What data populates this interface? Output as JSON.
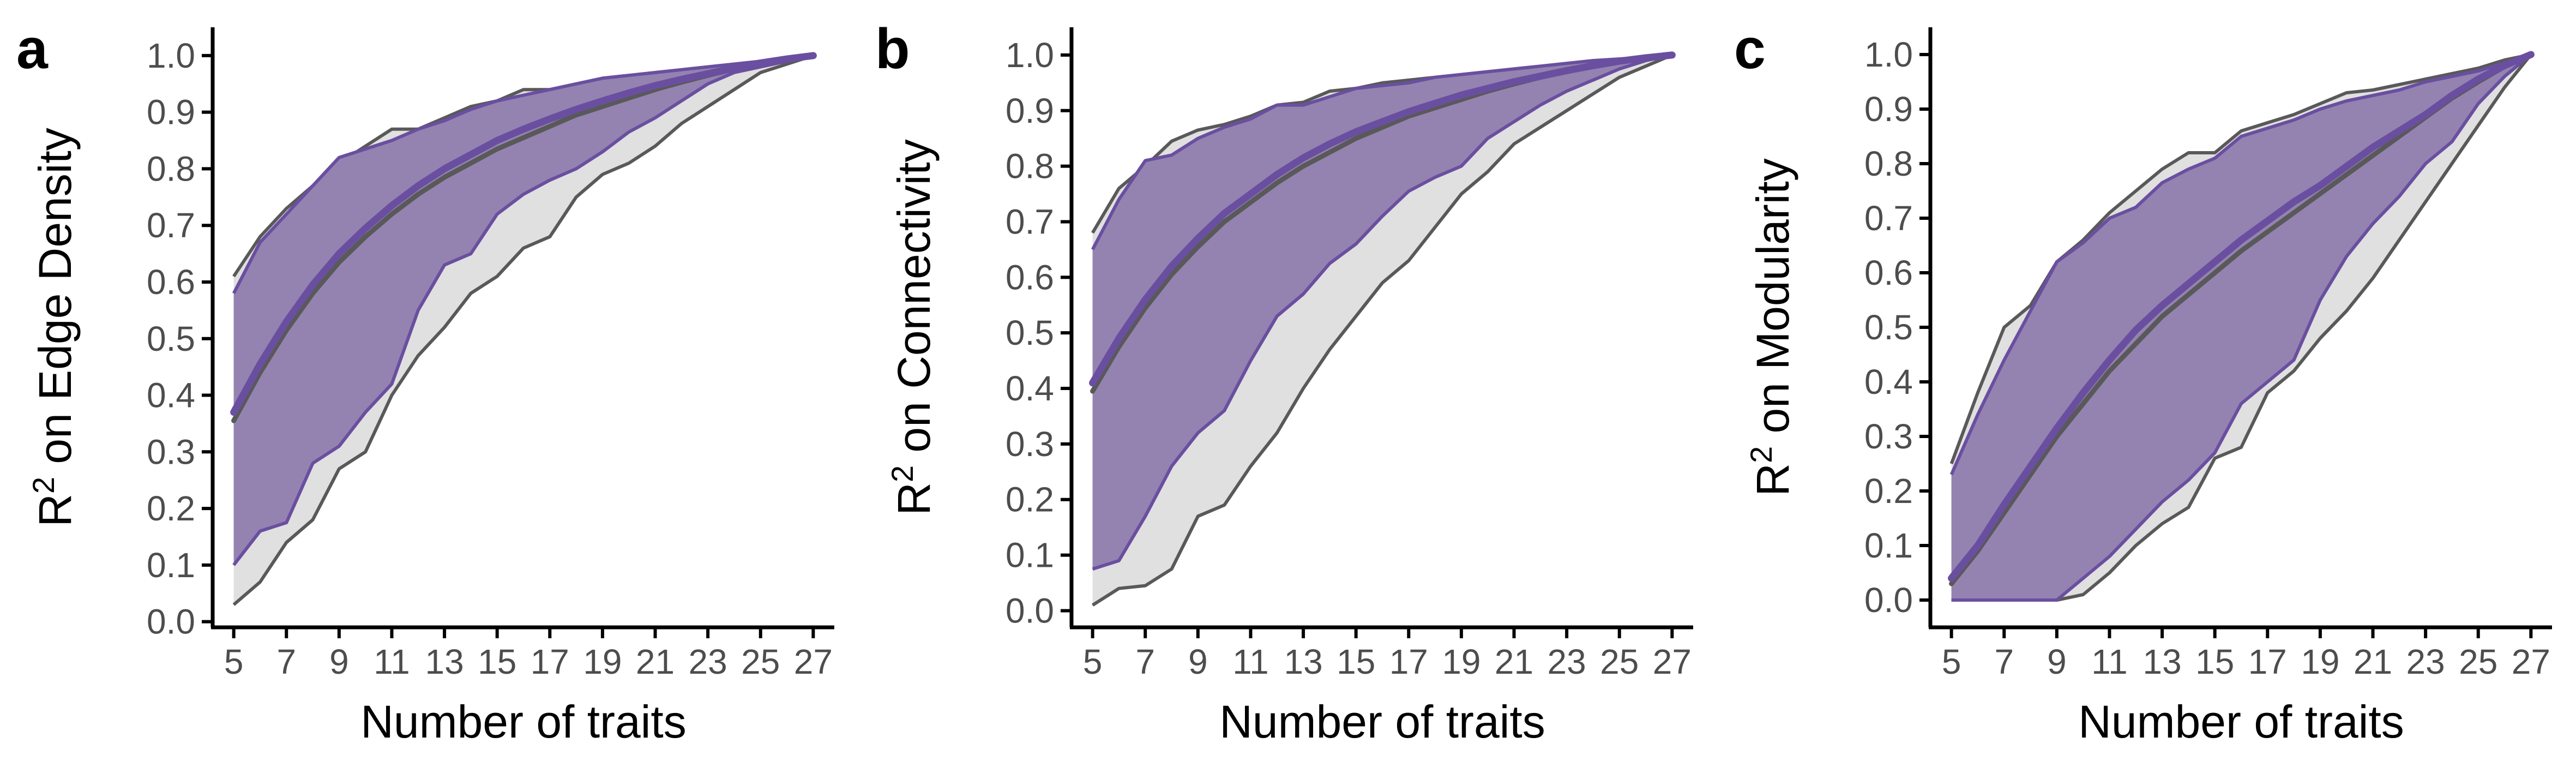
{
  "colors": {
    "gray_band_fill": "#e0e0e0",
    "gray_line": "#595959",
    "purple_fill": "#9483b0",
    "purple_line": "#6a4fa0",
    "axis": "#000000",
    "tick_text": "#4d4d4d"
  },
  "chart_data": [
    {
      "type": "area",
      "panel_label": "a",
      "xlabel": "Number of traits",
      "ylabel": "R² on Edge Density",
      "ylabel_base": "R",
      "ylabel_sup": "2",
      "ylabel_rest": " on Edge Density",
      "xlim": [
        4.2,
        27.8
      ],
      "ylim": [
        -0.01,
        1.05
      ],
      "xticks": [
        5,
        7,
        9,
        11,
        13,
        15,
        17,
        19,
        21,
        23,
        25,
        27
      ],
      "yticks": [
        0.0,
        0.1,
        0.2,
        0.3,
        0.4,
        0.5,
        0.6,
        0.7,
        0.8,
        0.9,
        1.0
      ],
      "x": [
        5,
        6,
        7,
        8,
        9,
        10,
        11,
        12,
        13,
        14,
        15,
        16,
        17,
        18,
        19,
        20,
        21,
        22,
        23,
        24,
        25,
        26,
        27
      ],
      "series": [
        {
          "role": "gray_band",
          "upper": [
            0.61,
            0.68,
            0.73,
            0.77,
            0.81,
            0.84,
            0.87,
            0.87,
            0.89,
            0.91,
            0.92,
            0.94,
            0.94,
            0.95,
            0.96,
            0.965,
            0.97,
            0.975,
            0.98,
            0.985,
            0.99,
            0.995,
            1.0
          ],
          "lower": [
            0.03,
            0.07,
            0.14,
            0.18,
            0.27,
            0.3,
            0.4,
            0.47,
            0.52,
            0.58,
            0.61,
            0.66,
            0.68,
            0.75,
            0.79,
            0.81,
            0.84,
            0.88,
            0.91,
            0.94,
            0.97,
            0.985,
            1.0
          ]
        },
        {
          "role": "purple_band",
          "upper": [
            0.58,
            0.67,
            0.72,
            0.77,
            0.82,
            0.835,
            0.85,
            0.87,
            0.885,
            0.905,
            0.92,
            0.93,
            0.94,
            0.95,
            0.96,
            0.965,
            0.97,
            0.975,
            0.98,
            0.985,
            0.99,
            0.995,
            1.0
          ],
          "lower": [
            0.1,
            0.16,
            0.175,
            0.28,
            0.31,
            0.37,
            0.42,
            0.55,
            0.63,
            0.65,
            0.72,
            0.755,
            0.78,
            0.8,
            0.83,
            0.865,
            0.89,
            0.92,
            0.95,
            0.97,
            0.98,
            0.99,
            1.0
          ]
        },
        {
          "role": "gray_mean",
          "values": [
            0.355,
            0.44,
            0.515,
            0.58,
            0.635,
            0.68,
            0.72,
            0.755,
            0.785,
            0.81,
            0.835,
            0.855,
            0.875,
            0.895,
            0.91,
            0.925,
            0.94,
            0.953,
            0.965,
            0.976,
            0.986,
            0.994,
            1.0
          ]
        },
        {
          "role": "purple_mean",
          "values": [
            0.37,
            0.455,
            0.53,
            0.595,
            0.65,
            0.695,
            0.735,
            0.77,
            0.8,
            0.825,
            0.85,
            0.87,
            0.888,
            0.905,
            0.92,
            0.934,
            0.947,
            0.958,
            0.968,
            0.978,
            0.987,
            0.994,
            1.0
          ]
        }
      ]
    },
    {
      "type": "area",
      "panel_label": "b",
      "xlabel": "Number of traits",
      "ylabel": "R² on Connectivity",
      "ylabel_base": "R",
      "ylabel_sup": "2",
      "ylabel_rest": " on Connectivity",
      "xlim": [
        4.2,
        27.8
      ],
      "ylim": [
        -0.03,
        1.05
      ],
      "xticks": [
        5,
        7,
        9,
        11,
        13,
        15,
        17,
        19,
        21,
        23,
        25,
        27
      ],
      "yticks": [
        0.0,
        0.1,
        0.2,
        0.3,
        0.4,
        0.5,
        0.6,
        0.7,
        0.8,
        0.9,
        1.0
      ],
      "x": [
        5,
        6,
        7,
        8,
        9,
        10,
        11,
        12,
        13,
        14,
        15,
        16,
        17,
        18,
        19,
        20,
        21,
        22,
        23,
        24,
        25,
        26,
        27
      ],
      "series": [
        {
          "role": "gray_band",
          "upper": [
            0.68,
            0.76,
            0.8,
            0.845,
            0.865,
            0.875,
            0.89,
            0.91,
            0.915,
            0.935,
            0.94,
            0.95,
            0.955,
            0.96,
            0.965,
            0.97,
            0.975,
            0.98,
            0.985,
            0.99,
            0.993,
            0.996,
            1.0
          ],
          "lower": [
            0.01,
            0.04,
            0.045,
            0.075,
            0.17,
            0.19,
            0.26,
            0.32,
            0.4,
            0.47,
            0.53,
            0.59,
            0.63,
            0.69,
            0.75,
            0.79,
            0.84,
            0.87,
            0.9,
            0.93,
            0.96,
            0.98,
            1.0
          ]
        },
        {
          "role": "purple_band",
          "upper": [
            0.65,
            0.74,
            0.81,
            0.82,
            0.85,
            0.87,
            0.885,
            0.91,
            0.91,
            0.925,
            0.94,
            0.945,
            0.95,
            0.96,
            0.965,
            0.97,
            0.975,
            0.98,
            0.985,
            0.99,
            0.993,
            0.996,
            1.0
          ],
          "lower": [
            0.075,
            0.09,
            0.17,
            0.26,
            0.32,
            0.36,
            0.45,
            0.53,
            0.57,
            0.625,
            0.66,
            0.71,
            0.755,
            0.78,
            0.8,
            0.85,
            0.88,
            0.91,
            0.935,
            0.955,
            0.975,
            0.99,
            1.0
          ]
        },
        {
          "role": "gray_mean",
          "values": [
            0.395,
            0.475,
            0.545,
            0.605,
            0.655,
            0.7,
            0.735,
            0.77,
            0.8,
            0.825,
            0.85,
            0.87,
            0.89,
            0.905,
            0.92,
            0.935,
            0.948,
            0.96,
            0.97,
            0.98,
            0.988,
            0.995,
            1.0
          ]
        },
        {
          "role": "purple_mean",
          "values": [
            0.41,
            0.49,
            0.56,
            0.62,
            0.67,
            0.715,
            0.75,
            0.785,
            0.815,
            0.84,
            0.862,
            0.88,
            0.898,
            0.913,
            0.928,
            0.94,
            0.952,
            0.962,
            0.972,
            0.981,
            0.989,
            0.995,
            1.0
          ]
        }
      ]
    },
    {
      "type": "area",
      "panel_label": "c",
      "xlabel": "Number of traits",
      "ylabel": "R² on Modularity",
      "ylabel_base": "R",
      "ylabel_sup": "2",
      "ylabel_rest": " on Modularity",
      "xlim": [
        4.2,
        27.8
      ],
      "ylim": [
        -0.05,
        1.05
      ],
      "xticks": [
        5,
        7,
        9,
        11,
        13,
        15,
        17,
        19,
        21,
        23,
        25,
        27
      ],
      "yticks": [
        0.0,
        0.1,
        0.2,
        0.3,
        0.4,
        0.5,
        0.6,
        0.7,
        0.8,
        0.9,
        1.0
      ],
      "x": [
        5,
        6,
        7,
        8,
        9,
        10,
        11,
        12,
        13,
        14,
        15,
        16,
        17,
        18,
        19,
        20,
        21,
        22,
        23,
        24,
        25,
        26,
        27
      ],
      "series": [
        {
          "role": "gray_band",
          "upper": [
            0.25,
            0.38,
            0.5,
            0.54,
            0.62,
            0.66,
            0.71,
            0.75,
            0.79,
            0.82,
            0.82,
            0.86,
            0.875,
            0.89,
            0.91,
            0.93,
            0.935,
            0.945,
            0.955,
            0.965,
            0.975,
            0.99,
            1.0
          ],
          "lower": [
            0.0,
            0.0,
            0.0,
            0.0,
            0.0,
            0.01,
            0.05,
            0.1,
            0.14,
            0.17,
            0.26,
            0.28,
            0.38,
            0.42,
            0.48,
            0.53,
            0.59,
            0.66,
            0.73,
            0.8,
            0.87,
            0.94,
            1.0
          ]
        },
        {
          "role": "purple_band",
          "upper": [
            0.23,
            0.34,
            0.44,
            0.53,
            0.62,
            0.655,
            0.7,
            0.72,
            0.765,
            0.79,
            0.81,
            0.85,
            0.865,
            0.88,
            0.9,
            0.915,
            0.925,
            0.935,
            0.95,
            0.96,
            0.97,
            0.985,
            1.0
          ],
          "lower": [
            0.0,
            0.0,
            0.0,
            0.0,
            0.0,
            0.04,
            0.08,
            0.13,
            0.18,
            0.22,
            0.27,
            0.36,
            0.4,
            0.44,
            0.55,
            0.63,
            0.69,
            0.74,
            0.8,
            0.84,
            0.91,
            0.96,
            1.0
          ]
        },
        {
          "role": "gray_mean",
          "values": [
            0.03,
            0.09,
            0.16,
            0.23,
            0.3,
            0.36,
            0.42,
            0.47,
            0.52,
            0.56,
            0.6,
            0.64,
            0.675,
            0.71,
            0.745,
            0.78,
            0.815,
            0.85,
            0.885,
            0.92,
            0.95,
            0.978,
            1.0
          ]
        },
        {
          "role": "purple_mean",
          "values": [
            0.04,
            0.1,
            0.175,
            0.245,
            0.315,
            0.38,
            0.44,
            0.495,
            0.54,
            0.58,
            0.62,
            0.66,
            0.695,
            0.73,
            0.76,
            0.795,
            0.83,
            0.86,
            0.89,
            0.925,
            0.955,
            0.98,
            1.0
          ]
        }
      ]
    }
  ]
}
